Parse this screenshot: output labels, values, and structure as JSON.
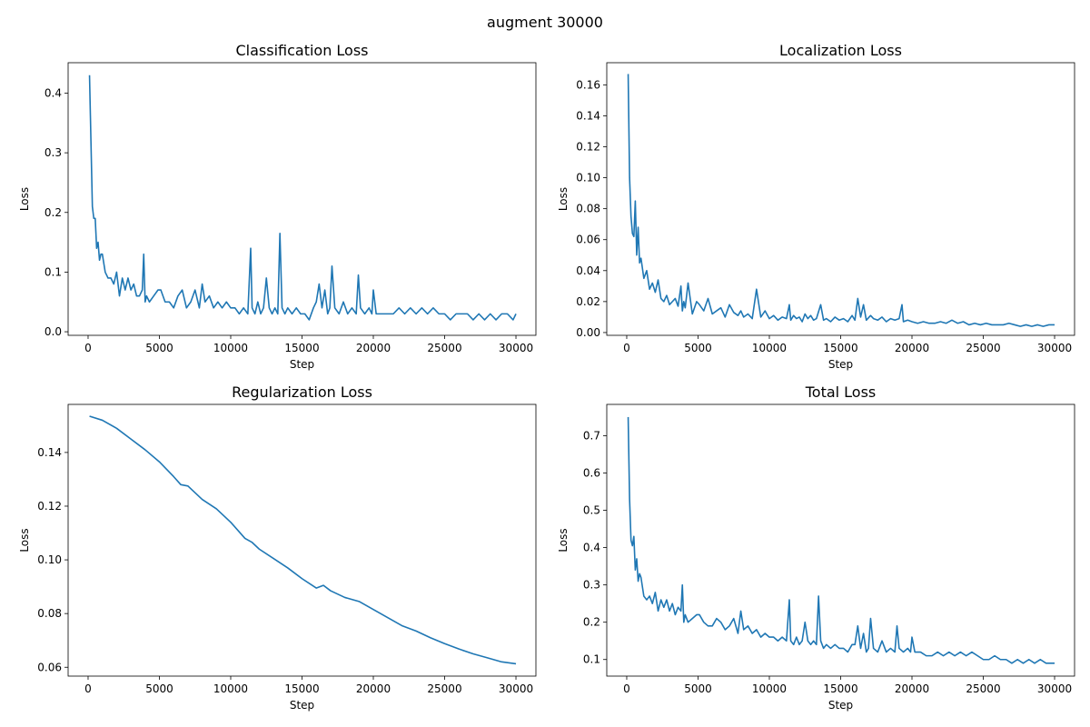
{
  "figure": {
    "suptitle": "augment 30000"
  },
  "chart_data": [
    {
      "type": "line",
      "title": "Classification Loss",
      "xlabel": "Step",
      "ylabel": "Loss",
      "xlim": [
        -1400,
        31400
      ],
      "ylim": [
        -0.006,
        0.451
      ],
      "xticks": [
        0,
        5000,
        10000,
        15000,
        20000,
        25000,
        30000
      ],
      "yticks": [
        0.0,
        0.1,
        0.2,
        0.3,
        0.4
      ],
      "ytick_decimals": 1,
      "grid": false,
      "color": "#1f77b4",
      "series": [
        {
          "x": [
            100,
            200,
            300,
            400,
            500,
            600,
            700,
            800,
            900,
            1000,
            1200,
            1400,
            1600,
            1800,
            2000,
            2200,
            2400,
            2600,
            2800,
            3000,
            3200,
            3400,
            3600,
            3800,
            3900,
            4000,
            4100,
            4300,
            4600,
            4900,
            5100,
            5400,
            5700,
            6000,
            6300,
            6600,
            6900,
            7200,
            7500,
            7800,
            8000,
            8200,
            8500,
            8800,
            9100,
            9400,
            9700,
            10000,
            10300,
            10600,
            10900,
            11200,
            11400,
            11500,
            11700,
            11900,
            12100,
            12300,
            12500,
            12700,
            12900,
            13100,
            13300,
            13450,
            13600,
            13800,
            14000,
            14300,
            14600,
            14900,
            15200,
            15500,
            15800,
            16000,
            16200,
            16400,
            16600,
            16800,
            16950,
            17100,
            17300,
            17600,
            17900,
            18200,
            18500,
            18800,
            18950,
            19100,
            19400,
            19700,
            19900,
            20000,
            20200,
            20600,
            21000,
            21400,
            21800,
            22200,
            22600,
            23000,
            23400,
            23800,
            24200,
            24600,
            25000,
            25400,
            25800,
            26200,
            26600,
            27000,
            27400,
            27800,
            28200,
            28600,
            29000,
            29400,
            29800,
            30000
          ],
          "y": [
            0.43,
            0.32,
            0.21,
            0.19,
            0.19,
            0.14,
            0.15,
            0.12,
            0.13,
            0.13,
            0.1,
            0.09,
            0.09,
            0.08,
            0.1,
            0.06,
            0.09,
            0.07,
            0.09,
            0.07,
            0.08,
            0.06,
            0.06,
            0.07,
            0.13,
            0.05,
            0.06,
            0.05,
            0.06,
            0.07,
            0.07,
            0.05,
            0.05,
            0.04,
            0.06,
            0.07,
            0.04,
            0.05,
            0.07,
            0.04,
            0.08,
            0.05,
            0.06,
            0.04,
            0.05,
            0.04,
            0.05,
            0.04,
            0.04,
            0.03,
            0.04,
            0.03,
            0.14,
            0.04,
            0.03,
            0.05,
            0.03,
            0.04,
            0.09,
            0.04,
            0.03,
            0.04,
            0.03,
            0.165,
            0.04,
            0.03,
            0.04,
            0.03,
            0.04,
            0.03,
            0.03,
            0.02,
            0.04,
            0.05,
            0.08,
            0.04,
            0.07,
            0.03,
            0.04,
            0.11,
            0.04,
            0.03,
            0.05,
            0.03,
            0.04,
            0.03,
            0.095,
            0.04,
            0.03,
            0.04,
            0.03,
            0.07,
            0.03,
            0.03,
            0.03,
            0.03,
            0.04,
            0.03,
            0.04,
            0.03,
            0.04,
            0.03,
            0.04,
            0.03,
            0.03,
            0.02,
            0.03,
            0.03,
            0.03,
            0.02,
            0.03,
            0.02,
            0.03,
            0.02,
            0.03,
            0.03,
            0.02,
            0.03
          ]
        }
      ]
    },
    {
      "type": "line",
      "title": "Localization Loss",
      "xlabel": "Step",
      "ylabel": "Loss",
      "xlim": [
        -1400,
        31400
      ],
      "ylim": [
        -0.0018,
        0.1743
      ],
      "xticks": [
        0,
        5000,
        10000,
        15000,
        20000,
        25000,
        30000
      ],
      "yticks": [
        0.0,
        0.02,
        0.04,
        0.06,
        0.08,
        0.1,
        0.12,
        0.14,
        0.16
      ],
      "ytick_decimals": 2,
      "grid": false,
      "color": "#1f77b4",
      "series": [
        {
          "x": [
            100,
            200,
            300,
            400,
            500,
            600,
            700,
            800,
            900,
            1000,
            1200,
            1400,
            1600,
            1800,
            2000,
            2200,
            2400,
            2600,
            2800,
            3000,
            3200,
            3400,
            3600,
            3800,
            3900,
            4000,
            4100,
            4300,
            4600,
            4900,
            5100,
            5400,
            5700,
            6000,
            6300,
            6600,
            6900,
            7200,
            7500,
            7800,
            8000,
            8200,
            8500,
            8800,
            9100,
            9400,
            9700,
            10000,
            10300,
            10600,
            10900,
            11200,
            11400,
            11500,
            11700,
            11900,
            12100,
            12300,
            12500,
            12700,
            12900,
            13100,
            13300,
            13600,
            13800,
            14000,
            14300,
            14600,
            14900,
            15200,
            15500,
            15800,
            16000,
            16200,
            16400,
            16600,
            16800,
            17100,
            17300,
            17600,
            17900,
            18200,
            18500,
            18800,
            19100,
            19300,
            19400,
            19700,
            20000,
            20400,
            20800,
            21200,
            21600,
            22000,
            22400,
            22800,
            23200,
            23600,
            24000,
            24400,
            24800,
            25200,
            25600,
            26000,
            26400,
            26800,
            27200,
            27600,
            28000,
            28400,
            28800,
            29200,
            29600,
            30000
          ],
          "y": [
            0.167,
            0.1,
            0.075,
            0.064,
            0.062,
            0.085,
            0.05,
            0.068,
            0.045,
            0.048,
            0.035,
            0.04,
            0.028,
            0.032,
            0.026,
            0.034,
            0.022,
            0.02,
            0.024,
            0.018,
            0.02,
            0.022,
            0.017,
            0.03,
            0.014,
            0.02,
            0.016,
            0.032,
            0.012,
            0.02,
            0.018,
            0.014,
            0.022,
            0.012,
            0.014,
            0.016,
            0.01,
            0.018,
            0.013,
            0.011,
            0.014,
            0.01,
            0.012,
            0.009,
            0.028,
            0.01,
            0.014,
            0.009,
            0.011,
            0.008,
            0.01,
            0.009,
            0.018,
            0.008,
            0.011,
            0.009,
            0.01,
            0.007,
            0.012,
            0.009,
            0.011,
            0.008,
            0.009,
            0.018,
            0.008,
            0.009,
            0.007,
            0.01,
            0.008,
            0.009,
            0.007,
            0.011,
            0.008,
            0.022,
            0.01,
            0.018,
            0.008,
            0.011,
            0.009,
            0.008,
            0.01,
            0.007,
            0.009,
            0.008,
            0.009,
            0.018,
            0.007,
            0.008,
            0.007,
            0.006,
            0.007,
            0.006,
            0.006,
            0.007,
            0.006,
            0.008,
            0.006,
            0.007,
            0.005,
            0.006,
            0.005,
            0.006,
            0.005,
            0.005,
            0.005,
            0.006,
            0.005,
            0.004,
            0.005,
            0.004,
            0.005,
            0.004,
            0.005,
            0.005
          ]
        }
      ]
    },
    {
      "type": "line",
      "title": "Regularization Loss",
      "xlabel": "Step",
      "ylabel": "Loss",
      "xlim": [
        -1400,
        31400
      ],
      "ylim": [
        0.0567,
        0.1579
      ],
      "xticks": [
        0,
        5000,
        10000,
        15000,
        20000,
        25000,
        30000
      ],
      "yticks": [
        0.06,
        0.08,
        0.1,
        0.12,
        0.14
      ],
      "ytick_decimals": 2,
      "grid": false,
      "color": "#1f77b4",
      "series": [
        {
          "x": [
            100,
            1000,
            2000,
            3000,
            4000,
            5000,
            6000,
            6500,
            7000,
            8000,
            9000,
            10000,
            11000,
            11500,
            12000,
            13000,
            14000,
            15000,
            16000,
            16500,
            17000,
            18000,
            19000,
            20000,
            21000,
            22000,
            23000,
            24000,
            25000,
            26000,
            27000,
            28000,
            29000,
            30000
          ],
          "y": [
            0.1535,
            0.152,
            0.149,
            0.145,
            0.141,
            0.1365,
            0.131,
            0.128,
            0.1275,
            0.1225,
            0.119,
            0.114,
            0.108,
            0.1065,
            0.104,
            0.1005,
            0.097,
            0.093,
            0.0895,
            0.0905,
            0.0885,
            0.086,
            0.0845,
            0.0815,
            0.0785,
            0.0755,
            0.0735,
            0.071,
            0.0688,
            0.0668,
            0.065,
            0.0635,
            0.062,
            0.0613
          ]
        }
      ]
    },
    {
      "type": "line",
      "title": "Total Loss",
      "xlabel": "Step",
      "ylabel": "Loss",
      "xlim": [
        -1400,
        31400
      ],
      "ylim": [
        0.0555,
        0.784
      ],
      "xticks": [
        0,
        5000,
        10000,
        15000,
        20000,
        25000,
        30000
      ],
      "yticks": [
        0.1,
        0.2,
        0.3,
        0.4,
        0.5,
        0.6,
        0.7
      ],
      "ytick_decimals": 1,
      "grid": false,
      "color": "#1f77b4",
      "series": [
        {
          "x": [
            100,
            200,
            300,
            400,
            500,
            600,
            700,
            800,
            900,
            1000,
            1200,
            1400,
            1600,
            1800,
            2000,
            2200,
            2400,
            2600,
            2800,
            3000,
            3200,
            3400,
            3600,
            3800,
            3900,
            4000,
            4100,
            4300,
            4600,
            4900,
            5100,
            5400,
            5700,
            6000,
            6300,
            6600,
            6900,
            7200,
            7500,
            7800,
            8000,
            8200,
            8500,
            8800,
            9100,
            9400,
            9700,
            10000,
            10300,
            10600,
            10900,
            11200,
            11400,
            11500,
            11700,
            11900,
            12100,
            12300,
            12500,
            12700,
            12900,
            13100,
            13300,
            13450,
            13600,
            13800,
            14000,
            14300,
            14600,
            14900,
            15200,
            15500,
            15800,
            16000,
            16200,
            16400,
            16600,
            16800,
            16950,
            17100,
            17300,
            17600,
            17900,
            18200,
            18500,
            18800,
            18950,
            19100,
            19400,
            19700,
            19900,
            20000,
            20200,
            20600,
            21000,
            21400,
            21800,
            22200,
            22600,
            23000,
            23400,
            23800,
            24200,
            24600,
            25000,
            25400,
            25800,
            26200,
            26600,
            27000,
            27400,
            27800,
            28200,
            28600,
            29000,
            29400,
            29800,
            30000
          ],
          "y": [
            0.75,
            0.53,
            0.42,
            0.405,
            0.43,
            0.34,
            0.37,
            0.31,
            0.33,
            0.32,
            0.27,
            0.26,
            0.27,
            0.25,
            0.28,
            0.23,
            0.26,
            0.24,
            0.26,
            0.23,
            0.25,
            0.22,
            0.24,
            0.23,
            0.3,
            0.2,
            0.22,
            0.2,
            0.21,
            0.22,
            0.22,
            0.2,
            0.19,
            0.19,
            0.21,
            0.2,
            0.18,
            0.19,
            0.21,
            0.17,
            0.23,
            0.18,
            0.19,
            0.17,
            0.18,
            0.16,
            0.17,
            0.16,
            0.16,
            0.15,
            0.16,
            0.15,
            0.26,
            0.15,
            0.14,
            0.16,
            0.14,
            0.15,
            0.2,
            0.15,
            0.14,
            0.15,
            0.14,
            0.27,
            0.15,
            0.13,
            0.14,
            0.13,
            0.14,
            0.13,
            0.13,
            0.12,
            0.14,
            0.14,
            0.19,
            0.13,
            0.17,
            0.12,
            0.13,
            0.21,
            0.13,
            0.12,
            0.15,
            0.12,
            0.13,
            0.12,
            0.19,
            0.13,
            0.12,
            0.13,
            0.12,
            0.16,
            0.12,
            0.12,
            0.11,
            0.11,
            0.12,
            0.11,
            0.12,
            0.11,
            0.12,
            0.11,
            0.12,
            0.11,
            0.1,
            0.1,
            0.11,
            0.1,
            0.1,
            0.09,
            0.1,
            0.09,
            0.1,
            0.09,
            0.1,
            0.09,
            0.09,
            0.09
          ]
        }
      ]
    }
  ]
}
